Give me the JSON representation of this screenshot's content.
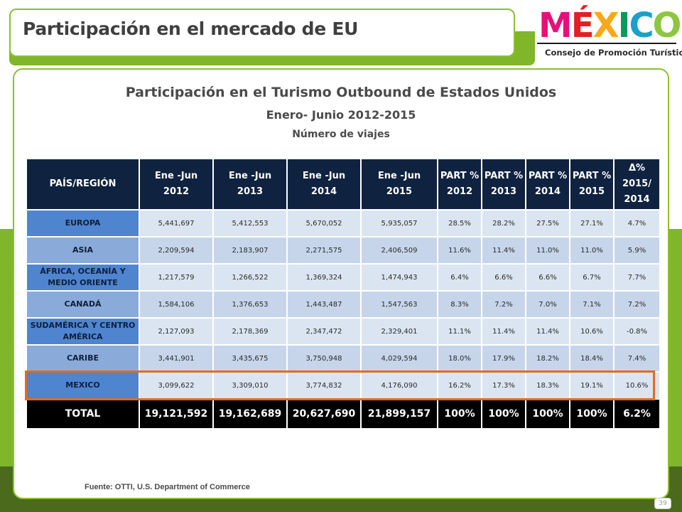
{
  "header": {
    "title": "Participación en el mercado de EU",
    "logo": {
      "word_parts": [
        "M",
        "É",
        "X",
        "I",
        "C",
        "O"
      ],
      "subtitle": "Consejo de Promoción Turística"
    }
  },
  "content": {
    "title": "Participación en el Turismo Outbound de Estados Unidos",
    "period": "Enero- Junio  2012-2015",
    "unit": "Número de viajes"
  },
  "table": {
    "headers": [
      [
        "PAÍS/REGIÓN"
      ],
      [
        "Ene -Jun",
        "2012"
      ],
      [
        "Ene -Jun",
        "2013"
      ],
      [
        "Ene -Jun",
        "2014"
      ],
      [
        "Ene -Jun",
        "2015"
      ],
      [
        "PART %",
        "2012"
      ],
      [
        "PART %",
        "2013"
      ],
      [
        "PART %",
        "2014"
      ],
      [
        "PART %",
        "2015"
      ],
      [
        "Δ%",
        "2015/",
        "2014"
      ]
    ],
    "rows": [
      {
        "label": [
          "EUROPA"
        ],
        "values": [
          "5,441,697",
          "5,412,553",
          "5,670,052",
          "5,935,057",
          "28.5%",
          "28.2%",
          "27.5%",
          "27.1%",
          "4.7%"
        ]
      },
      {
        "label": [
          "ASIA"
        ],
        "values": [
          "2,209,594",
          "2,183,907",
          "2,271,575",
          "2,406,509",
          "11.6%",
          "11.4%",
          "11.0%",
          "11.0%",
          "5.9%"
        ]
      },
      {
        "label": [
          "ÁFRICA, OCEANÍA Y",
          "MEDIO ORIENTE"
        ],
        "values": [
          "1,217,579",
          "1,266,522",
          "1,369,324",
          "1,474,943",
          "6.4%",
          "6.6%",
          "6.6%",
          "6.7%",
          "7.7%"
        ]
      },
      {
        "label": [
          "CANADÁ"
        ],
        "values": [
          "1,584,106",
          "1,376,653",
          "1,443,487",
          "1,547,563",
          "8.3%",
          "7.2%",
          "7.0%",
          "7.1%",
          "7.2%"
        ]
      },
      {
        "label": [
          "SUDAMÉRICA Y CENTRO",
          "AMÉRICA"
        ],
        "values": [
          "2,127,093",
          "2,178,369",
          "2,347,472",
          "2,329,401",
          "11.1%",
          "11.4%",
          "11.4%",
          "10.6%",
          "-0.8%"
        ]
      },
      {
        "label": [
          "CARIBE"
        ],
        "values": [
          "3,441,901",
          "3,435,675",
          "3,750,948",
          "4,029,594",
          "18.0%",
          "17.9%",
          "18.2%",
          "18.4%",
          "7.4%"
        ]
      },
      {
        "label": [
          "MEXICO"
        ],
        "values": [
          "3,099,622",
          "3,309,010",
          "3,774,832",
          "4,176,090",
          "16.2%",
          "17.3%",
          "18.3%",
          "19.1%",
          "10.6%"
        ]
      }
    ],
    "total": {
      "label": "TOTAL",
      "values": [
        "19,121,592",
        "19,162,689",
        "20,627,690",
        "21,899,157",
        "100%",
        "100%",
        "100%",
        "100%",
        "6.2%"
      ]
    }
  },
  "footer": {
    "source": "Fuente: OTTI, U.S. Department of Commerce",
    "page_number": "39"
  },
  "colors": {
    "brand_green": "#7fb62a",
    "header_navy": "#0f2240",
    "label_blue": "#4f84cf",
    "highlight_orange": "#e26b1f"
  }
}
